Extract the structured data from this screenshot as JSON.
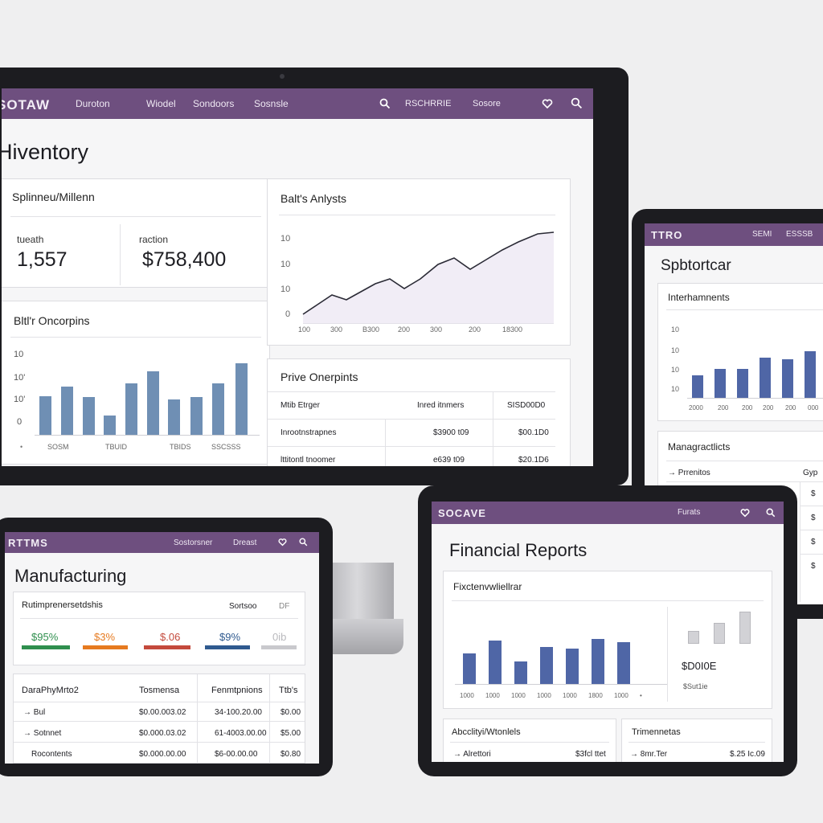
{
  "colors": {
    "nav": "#6e4f7f",
    "bar_blue": "#6f8fb4",
    "bar_navy": "#4f66a6",
    "bar_gray": "#d2d2d6"
  },
  "monitor": {
    "nav": {
      "logo": "SOTAW",
      "items": [
        "Duroton",
        "Wiodel",
        "Sondoors",
        "Sosnsle"
      ],
      "right_items": [
        "RSCHRRIE",
        "Sosore"
      ],
      "icons": [
        "search-icon",
        "heart-icon",
        "search-icon"
      ]
    },
    "page_title": "Hiventory",
    "stats_card": {
      "title": "Splinneu/Millenn",
      "stats": [
        {
          "label": "tueath",
          "value": "1,557"
        },
        {
          "label": "raction",
          "value": "$758,400"
        }
      ]
    },
    "bar_card": {
      "title": "Bltl'r Oncorpins",
      "yticks": [
        "10",
        "10'",
        "10'",
        "0"
      ],
      "xticks": [
        "SOSM",
        "TBUID",
        "TBIDS",
        "SSCSSS"
      ]
    },
    "line_card": {
      "title": "Balt's Anlysts",
      "yticks": [
        "10",
        "10",
        "10",
        "0"
      ],
      "xticks": [
        "100",
        "300",
        "B300",
        "200",
        "300",
        "200",
        "18300"
      ]
    },
    "table_card": {
      "title": "Prive Onerpints",
      "header": [
        "Mtib Etrger",
        "Inred itnmers",
        "SISD00D0"
      ],
      "rows": [
        [
          "Inrootnstrapnes",
          "$3900 t09",
          "$00.1D0"
        ],
        [
          "lttitontl tnoomer",
          "e639 t09",
          "$20.1D6"
        ]
      ]
    }
  },
  "tablet_right": {
    "nav": {
      "logo": "TTRO",
      "items": [
        "SEMI",
        "ESSSB"
      ]
    },
    "page_title": "Spbtortcar",
    "chart_card": {
      "title": "Interhamnents",
      "yticks": [
        "10",
        "10",
        "10",
        "10"
      ],
      "xticks": [
        "2000",
        "200",
        "200",
        "200",
        "200",
        "000"
      ]
    },
    "list_card": {
      "title": "Managractlicts",
      "rows": [
        [
          "Prrenitos",
          "Gyp"
        ],
        [
          "",
          "$"
        ],
        [
          "",
          "$"
        ],
        [
          "",
          "$"
        ],
        [
          "",
          "$"
        ]
      ]
    }
  },
  "tablet_left": {
    "nav": {
      "logo": "RTTMS",
      "items": [
        "Sostorsner",
        "Dreast"
      ]
    },
    "page_title": "Manufacturing",
    "kpi_card": {
      "title": "Rutimprenersetdshis",
      "right_labels": [
        "Sortsoo",
        "DF"
      ],
      "kpis": [
        {
          "value": "$95%",
          "color": "#2f8f4e"
        },
        {
          "value": "$3%",
          "color": "#e67a1f"
        },
        {
          "value": "$.06",
          "color": "#c44a3c"
        },
        {
          "value": "$9%",
          "color": "#2f5a8f"
        },
        {
          "value": "0ib",
          "color": "#c9c9cd"
        }
      ]
    },
    "table": {
      "header": [
        "DaraPhyMrto2",
        "Tosmensa",
        "Fenmtpnions",
        "Ttb's"
      ],
      "rows": [
        [
          "Bul",
          "$0.00.003.02",
          "34-100.20.00",
          "$0.00"
        ],
        [
          "Sotnnet",
          "$0.000.03.02",
          "61-4003.00.00",
          "$5.00"
        ],
        [
          "Rocontents",
          "$0.000.00.00",
          "$6-00.00.00",
          "$0.80"
        ]
      ]
    }
  },
  "tablet_mid": {
    "nav": {
      "logo": "SOCAVE",
      "items": [
        "Furats"
      ]
    },
    "page_title": "Financial Reports",
    "chart_card": {
      "title": "Fixctenvwliellrar",
      "xticks": [
        "1000",
        "1000",
        "1000",
        "1000",
        "1000",
        "1800",
        "1000"
      ],
      "side_value": "$D0I0E",
      "side_label": "$Sut1ie"
    },
    "bottom_left": {
      "title": "Abcclityi/Wtonlels",
      "row": [
        "Alrettori",
        "$3fcl ttet"
      ]
    },
    "bottom_right": {
      "title": "Trimennetas",
      "row": [
        "8mr.Ter",
        "$.25 Ic.09"
      ]
    }
  }
}
